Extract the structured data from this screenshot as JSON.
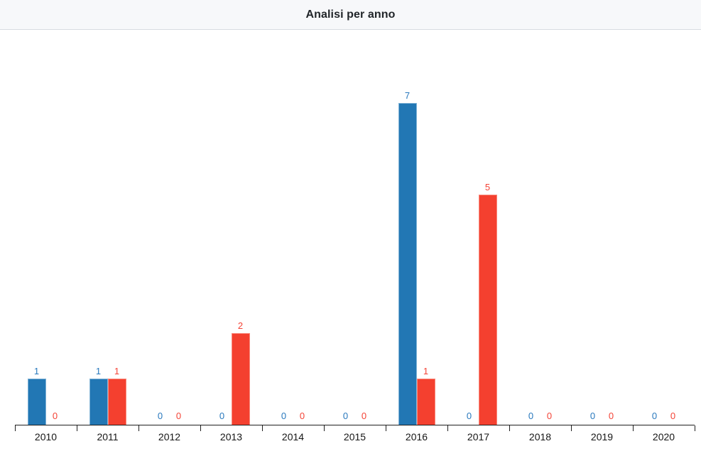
{
  "header": {
    "title": "Analisi per anno"
  },
  "chart_data": {
    "type": "bar",
    "title": "Analisi per anno",
    "categories": [
      "2010",
      "2011",
      "2012",
      "2013",
      "2014",
      "2015",
      "2016",
      "2017",
      "2018",
      "2019",
      "2020"
    ],
    "series": [
      {
        "name": "blue",
        "color": "#2277b4",
        "border_color": "#7fb2d6",
        "label_color": "#2878bd",
        "values": [
          1,
          1,
          0,
          0,
          0,
          0,
          7,
          0,
          0,
          0,
          0
        ]
      },
      {
        "name": "red",
        "color": "#f4402f",
        "border_color": "#f9897c",
        "label_color": "#f44336",
        "values": [
          0,
          1,
          0,
          2,
          0,
          0,
          1,
          5,
          0,
          0,
          0
        ]
      }
    ],
    "xlabel": "",
    "ylabel": "",
    "ylim": [
      0,
      7.8
    ],
    "grid": false,
    "legend": "none",
    "value_labels": true
  }
}
